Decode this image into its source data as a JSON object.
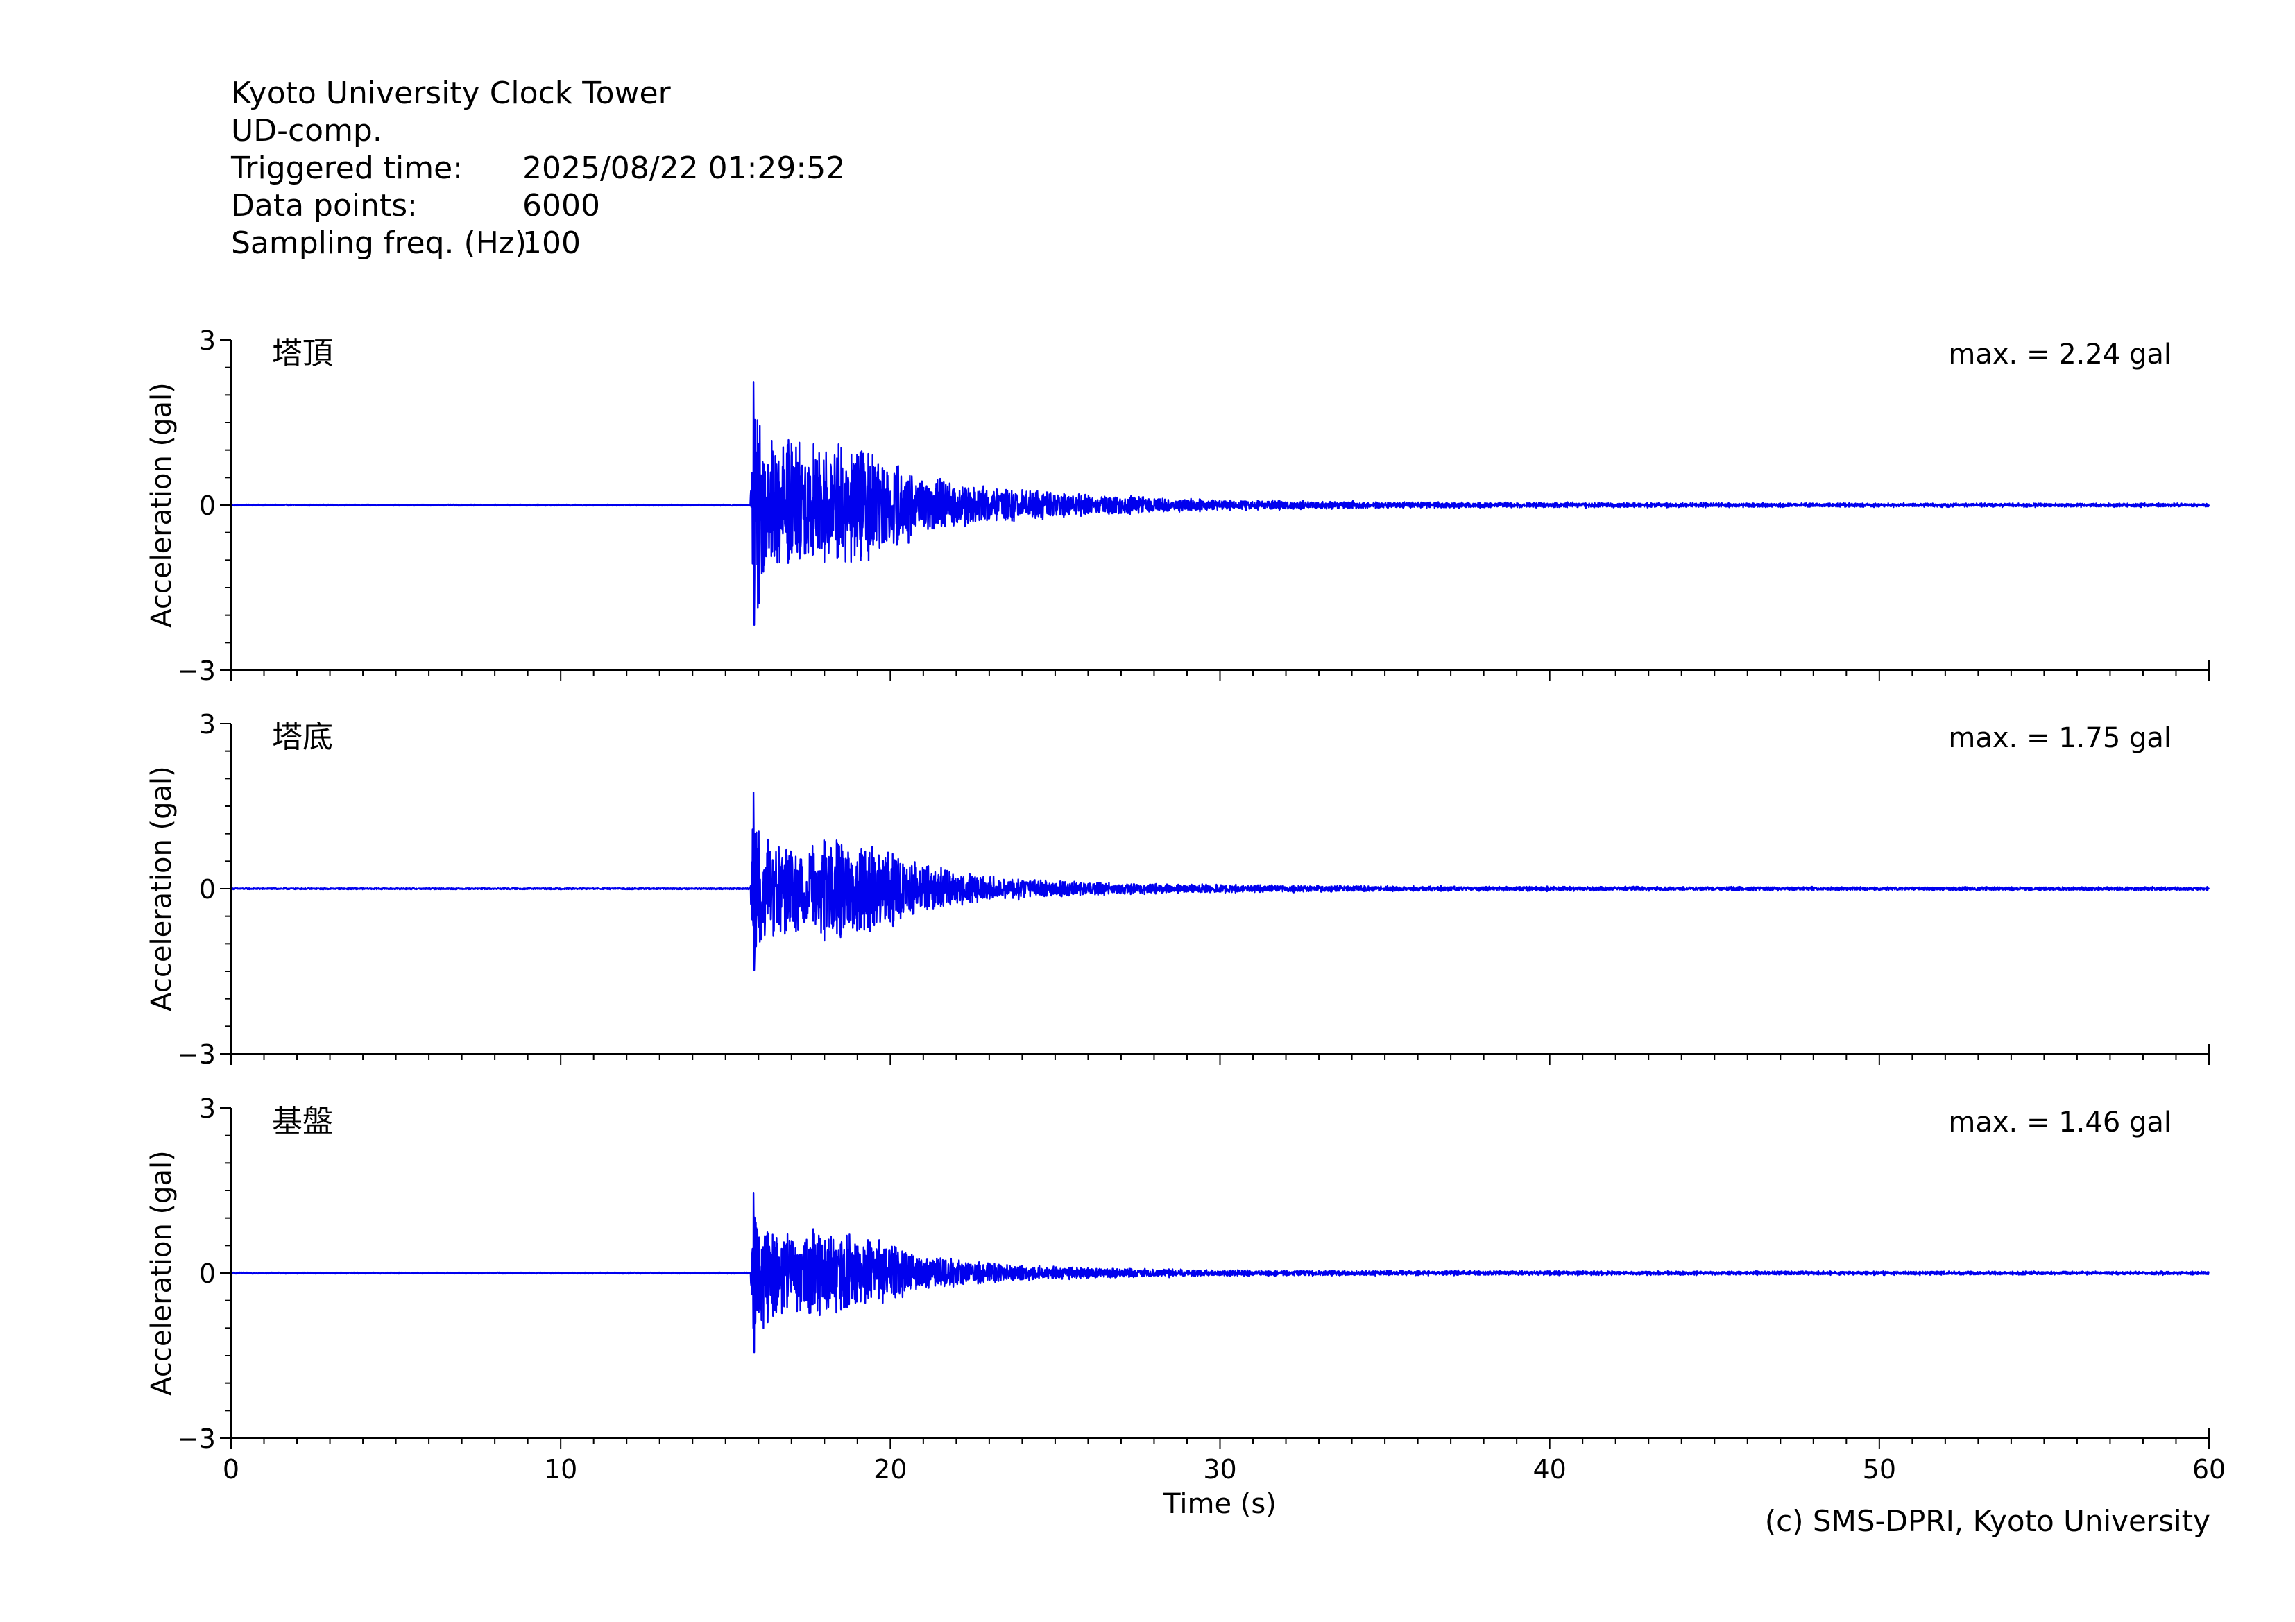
{
  "header": {
    "station": "Kyoto University Clock Tower",
    "component": "UD-comp.",
    "fields": [
      {
        "label": "Triggered time:",
        "value": "2025/08/22 01:29:52"
      },
      {
        "label": "Data points:",
        "value": "6000"
      },
      {
        "label": "Sampling freq. (Hz):",
        "value": "100"
      }
    ]
  },
  "copyright": "(c) SMS-DPRI, Kyoto University",
  "chart_data": {
    "type": "line",
    "xlabel": "Time (s)",
    "ylabel": "Acceleration (gal)",
    "xlim": [
      0,
      60
    ],
    "ylim": [
      -3,
      3
    ],
    "xticks": [
      0,
      10,
      20,
      30,
      40,
      50,
      60
    ],
    "yticks": [
      -3,
      0,
      3
    ],
    "ytick_labels": [
      "−3",
      "0",
      "3"
    ],
    "line_color": "#0000ee",
    "sampling_hz": 100,
    "onset_s": 15.75,
    "panels": [
      {
        "name": "塔頂",
        "max_label": "max. = 2.24 gal",
        "peak": 2.24,
        "peak_neg": -2.18,
        "envelope": [
          [
            15.75,
            0.0
          ],
          [
            15.85,
            2.24
          ],
          [
            16.5,
            1.3
          ],
          [
            17.5,
            1.3
          ],
          [
            18.5,
            1.25
          ],
          [
            19.5,
            1.1
          ],
          [
            21.0,
            0.6
          ],
          [
            22.5,
            0.4
          ],
          [
            24.0,
            0.3
          ],
          [
            26.0,
            0.22
          ],
          [
            28.0,
            0.15
          ],
          [
            30.0,
            0.1
          ],
          [
            35.0,
            0.06
          ],
          [
            45.0,
            0.04
          ],
          [
            60.0,
            0.03
          ]
        ]
      },
      {
        "name": "塔底",
        "max_label": "max. = 1.75 gal",
        "peak": 1.75,
        "peak_neg": -1.48,
        "envelope": [
          [
            15.75,
            0.0
          ],
          [
            15.85,
            1.75
          ],
          [
            16.5,
            0.9
          ],
          [
            17.5,
            0.95
          ],
          [
            18.5,
            1.05
          ],
          [
            19.5,
            0.85
          ],
          [
            21.0,
            0.5
          ],
          [
            22.5,
            0.3
          ],
          [
            24.0,
            0.2
          ],
          [
            26.0,
            0.14
          ],
          [
            28.0,
            0.1
          ],
          [
            30.0,
            0.08
          ],
          [
            35.0,
            0.05
          ],
          [
            45.0,
            0.035
          ],
          [
            60.0,
            0.03
          ]
        ]
      },
      {
        "name": "基盤",
        "max_label": "max. = 1.46 gal",
        "peak": 1.46,
        "peak_neg": -1.44,
        "envelope": [
          [
            15.75,
            0.0
          ],
          [
            15.85,
            1.46
          ],
          [
            16.5,
            0.8
          ],
          [
            17.5,
            0.85
          ],
          [
            18.5,
            0.85
          ],
          [
            19.5,
            0.65
          ],
          [
            21.0,
            0.35
          ],
          [
            22.5,
            0.22
          ],
          [
            24.0,
            0.15
          ],
          [
            26.0,
            0.11
          ],
          [
            28.0,
            0.08
          ],
          [
            30.0,
            0.06
          ],
          [
            35.0,
            0.045
          ],
          [
            45.0,
            0.035
          ],
          [
            60.0,
            0.03
          ]
        ]
      }
    ]
  }
}
